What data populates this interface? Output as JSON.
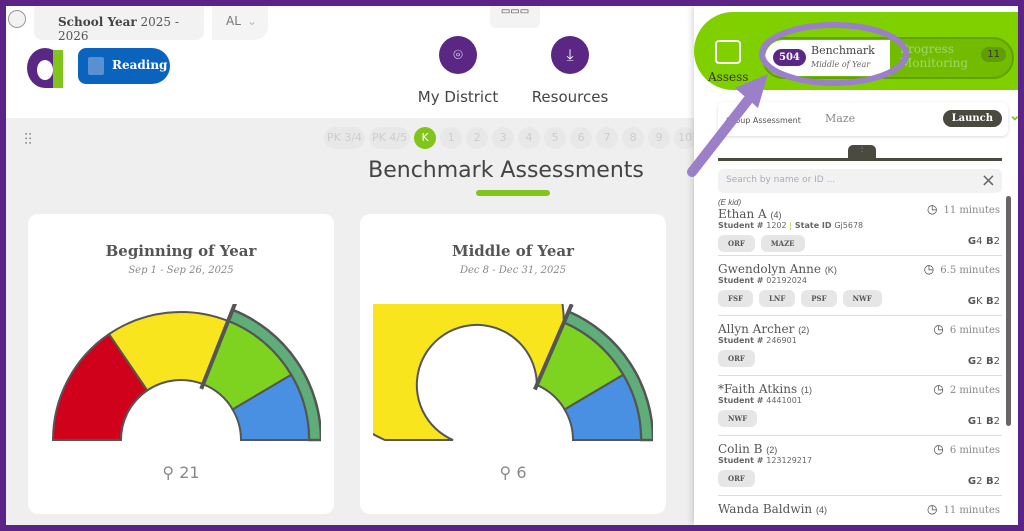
{
  "header": {
    "school_year_label": "School Year",
    "school_year": "2025 - 2026",
    "state": "AL",
    "subject": "Reading",
    "nav": [
      {
        "label": "My District",
        "icon": "map-pin-icon"
      },
      {
        "label": "Resources",
        "icon": "download-file-icon"
      }
    ]
  },
  "grades": [
    "PK 3/4",
    "PK 4/5",
    "K",
    "1",
    "2",
    "3",
    "4",
    "5",
    "6",
    "7",
    "8",
    "9",
    "10"
  ],
  "selected_grade": "K",
  "page_title": "Benchmark Assessments",
  "cards": [
    {
      "title": "Beginning of Year",
      "dates": "Sep 1 - Sep 26, 2025",
      "count": "21",
      "segments": [
        {
          "color": "#d0021b",
          "to": 0.31
        },
        {
          "color": "#f8e51d",
          "to": 0.62
        },
        {
          "color": "#7ed321",
          "to": 0.83
        },
        {
          "color": "#4a90e2",
          "to": 1
        }
      ],
      "benchmark_at": 0.62
    },
    {
      "title": "Middle of Year",
      "dates": "Dec 8 - Dec 31, 2025",
      "count": "6",
      "segments": [
        {
          "color": "#f8e51d",
          "to": 0.63
        },
        {
          "color": "#7ed321",
          "to": 0.83
        },
        {
          "color": "#4a90e2",
          "to": 1
        }
      ],
      "benchmark_at": 0.63
    }
  ],
  "panel": {
    "assess_label": "Assess",
    "benchmark": {
      "count": "504",
      "label": "Benchmark",
      "sub": "Middle of Year"
    },
    "progress": {
      "label": "Progress Monitoring",
      "count": "11"
    },
    "group_label": "Group Assessment",
    "selected_assessment": "Maze",
    "launch": "Launch",
    "search_placeholder": "Search by name or ID ...",
    "students": [
      {
        "note": "(E kid)",
        "name": "Ethan A",
        "grade": "(4)",
        "student_no": "1202",
        "state_id": "Gj5678",
        "time": "11 minutes",
        "tags": [
          "ORF",
          "MAZE"
        ],
        "g": "4",
        "b": "2"
      },
      {
        "name": "Gwendolyn Anne",
        "grade": "(K)",
        "student_no": "02192024",
        "time": "6.5 minutes",
        "tags": [
          "FSF",
          "LNF",
          "PSF",
          "NWF"
        ],
        "g": "K",
        "b": "2"
      },
      {
        "name": "Allyn Archer",
        "grade": "(2)",
        "student_no": "246901",
        "time": "6 minutes",
        "tags": [
          "ORF"
        ],
        "g": "2",
        "b": "2"
      },
      {
        "name": "*Faith Atkins",
        "grade": "(1)",
        "student_no": "4441001",
        "time": "2 minutes",
        "tags": [
          "NWF"
        ],
        "g": "1",
        "b": "2"
      },
      {
        "name": "Colin B",
        "grade": "(2)",
        "student_no": "123129217",
        "time": "6 minutes",
        "tags": [
          "ORF"
        ],
        "g": "2",
        "b": "2"
      },
      {
        "name": "Wanda Baldwin",
        "grade": "(4)",
        "time": "11 minutes"
      }
    ],
    "student_no_label": "Student #",
    "state_id_label": "State ID",
    "g_label": "G",
    "b_label": "B"
  },
  "colors": {
    "brand_purple": "#5a2784",
    "accent_green": "#80d000",
    "annotation": "#9b7fc8"
  }
}
